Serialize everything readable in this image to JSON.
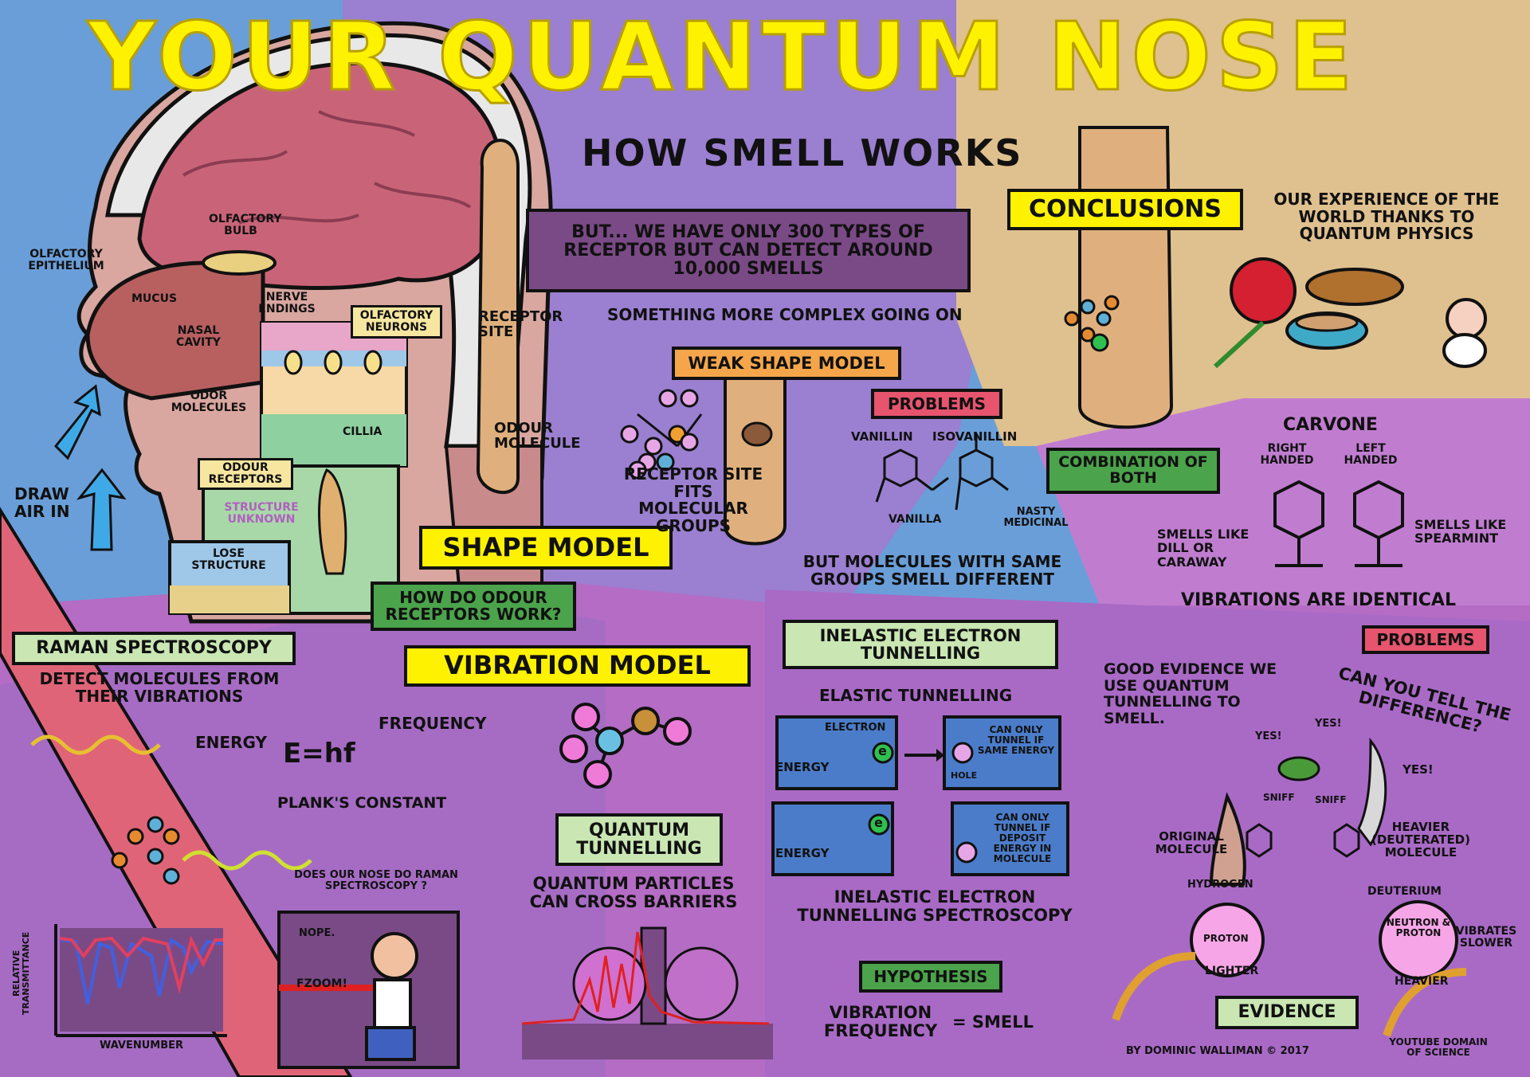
{
  "title": "YOUR QUANTUM NOSE",
  "subtitle": "HOW SMELL WORKS",
  "head": {
    "olfactory_bulb": "OLFACTORY BULB",
    "olfactory_epithelium": "OLFACTORY EPITHELIUM",
    "mucus": "MUCUS",
    "nerve_endings": "NERVE ENDINGS",
    "nasal_cavity": "NASAL CAVITY",
    "olfactory_neurons": "OLFACTORY NEURONS",
    "odor_molecules": "ODOR MOLECULES",
    "cillia": "CILLIA",
    "odour_receptors": "ODOUR RECEPTORS",
    "structure_unknown": "STRUCTURE UNKNOWN",
    "lose_structure": "LOSE STRUCTURE",
    "draw_air_in": "DRAW AIR IN",
    "how_receptors_work": "HOW DO ODOUR RECEPTORS WORK?"
  },
  "shape": {
    "but_box": "BUT... WE HAVE ONLY 300 TYPES OF RECEPTOR BUT CAN DETECT AROUND 10,000 SMELLS",
    "complex": "SOMETHING MORE COMPLEX GOING ON",
    "receptor_site": "RECEPTOR SITE",
    "odour_molecule": "ODOUR MOLECULE",
    "shape_model": "SHAPE MODEL",
    "weak_shape_model": "WEAK SHAPE MODEL",
    "receptor_site_fits": "RECEPTOR SITE FITS MOLECULAR GROUPS",
    "problems": "PROBLEMS",
    "vanillin": "VANILLIN",
    "isovanillin": "ISOVANILLIN",
    "vanilla": "VANILLA",
    "nasty_medicinal": "NASTY MEDICINAL",
    "same_groups": "BUT MOLECULES WITH SAME GROUPS SMELL DIFFERENT",
    "combination": "COMBINATION OF BOTH"
  },
  "conclusions": {
    "label": "CONCLUSIONS",
    "text": "OUR EXPERIENCE OF THE WORLD THANKS TO QUANTUM PHYSICS"
  },
  "carvone": {
    "title": "CARVONE",
    "right": "RIGHT HANDED",
    "left": "LEFT HANDED",
    "dill": "SMELLS LIKE DILL OR CARAWAY",
    "spearmint": "SMELLS LIKE SPEARMINT",
    "vibrations": "VIBRATIONS ARE IDENTICAL",
    "problems": "PROBLEMS"
  },
  "raman": {
    "title": "RAMAN SPECTROSCOPY",
    "detect": "DETECT MOLECULES FROM THEIR VIBRATIONS",
    "energy": "ENERGY",
    "formula": "E=hf",
    "frequency": "FREQUENCY",
    "planck": "PLANK'S CONSTANT",
    "does_nose": "DOES OUR NOSE DO RAMAN SPECTROSCOPY ?",
    "nope": "NOPE.",
    "fzoom": "FZOOM!",
    "y_axis": "RELATIVE TRANSMITTANCE",
    "x_axis": "WAVENUMBER"
  },
  "vibration": {
    "title": "VIBRATION MODEL",
    "tunnelling": "QUANTUM TUNNELLING",
    "cross": "QUANTUM PARTICLES CAN CROSS BARRIERS"
  },
  "iets": {
    "title": "INELASTIC ELECTRON TUNNELLING",
    "elastic": "ELASTIC TUNNELLING",
    "electron": "ELECTRON",
    "energy1": "ENERGY",
    "energy2": "ENERGY",
    "e1": "e",
    "e2": "e",
    "hole": "HOLE",
    "same_energy": "CAN ONLY TUNNEL IF SAME ENERGY",
    "deposit": "CAN ONLY TUNNEL IF DEPOSIT ENERGY IN MOLECULE",
    "spectroscopy": "INELASTIC ELECTRON TUNNELLING SPECTROSCOPY",
    "hypothesis": "HYPOTHESIS",
    "vib_freq": "VIBRATION FREQUENCY",
    "equals_smell": "= SMELL"
  },
  "evidence": {
    "good": "GOOD EVIDENCE WE USE QUANTUM TUNNELLING TO SMELL.",
    "can_you_tell": "CAN YOU TELL THE DIFFERENCE?",
    "yes1": "YES!",
    "yes2": "YES!",
    "yes3": "YES!",
    "sniff1": "SNIFF",
    "sniff2": "SNIFF",
    "original": "ORIGINAL MOLECULE",
    "heavier_mol": "HEAVIER (DEUTERATED) MOLECULE",
    "hydrogen": "HYDROGEN",
    "deuterium": "DEUTERIUM",
    "proton": "PROTON",
    "neutron_proton": "NEUTRON & PROTON",
    "vibrates_slower": "VIBRATES SLOWER",
    "lighter": "LIGHTER",
    "heavier": "HEAVIER",
    "label": "EVIDENCE"
  },
  "credit": "BY DOMINIC WALLIMAN © 2017",
  "youtube": "YOUTUBE DOMAIN OF SCIENCE",
  "colors": {
    "title_yellow": "#fff200",
    "bg_blue": "#6a9ed8",
    "bg_purple": "#9b7fd0",
    "bg_tan": "#dfc08f",
    "bg_magenta": "#b46cc4"
  }
}
